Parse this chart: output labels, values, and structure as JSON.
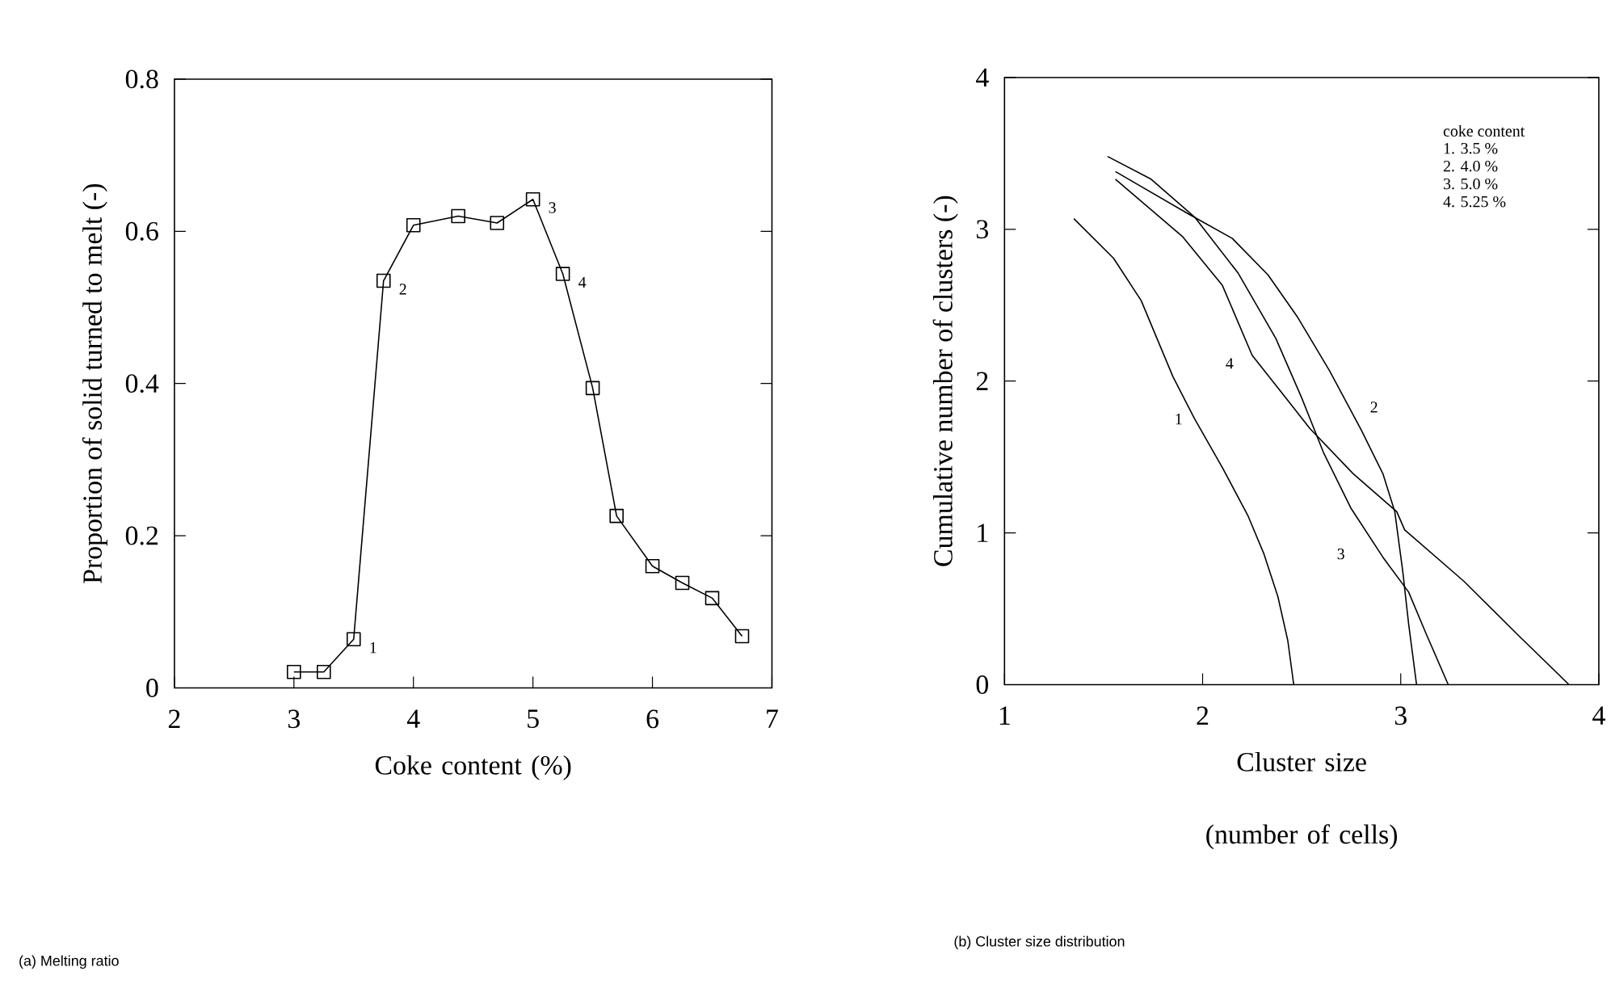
{
  "chart_data": [
    {
      "type": "line",
      "title": "(a) Melting ratio",
      "xlabel": "Coke content    (%)",
      "ylabel": "Proportion of solid turned to melt (-)",
      "x": [
        3.0,
        3.25,
        3.5,
        3.75,
        4.0,
        4.375,
        4.7,
        5.0,
        5.25,
        5.5,
        5.7,
        6.0,
        6.25,
        6.5,
        6.75
      ],
      "values": [
        0.021,
        0.021,
        0.064,
        0.535,
        0.608,
        0.62,
        0.611,
        0.642,
        0.544,
        0.394,
        0.226,
        0.16,
        0.138,
        0.118,
        0.068
      ],
      "color": "#000000",
      "marker": "square",
      "line_style": "solid",
      "xlim": [
        2,
        7
      ],
      "ylim": [
        0,
        0.8
      ],
      "xticks": [
        2,
        3,
        4,
        5,
        6,
        7
      ],
      "yticks": [
        0,
        0.2,
        0.4,
        0.6,
        0.8
      ],
      "annotations": [
        {
          "text": "1",
          "x": 3.5,
          "y": 0.064
        },
        {
          "text": "2",
          "x": 3.75,
          "y": 0.535
        },
        {
          "text": "3",
          "x": 5.0,
          "y": 0.642
        },
        {
          "text": "4",
          "x": 5.25,
          "y": 0.544
        }
      ]
    },
    {
      "type": "line",
      "title": "(b) Cluster size distribution",
      "xlabel": "Cluster size (number of cells)",
      "ylabel": "Cumulative number of clusters (-)",
      "series": [
        {
          "color": "#000000",
          "x": [
            1.35,
            1.55,
            1.69,
            1.77,
            1.85,
            1.96,
            2.1,
            2.23,
            2.31,
            2.38,
            2.43,
            2.46
          ],
          "values": [
            3.07,
            2.81,
            2.53,
            2.28,
            2.03,
            1.75,
            1.43,
            1.11,
            0.86,
            0.58,
            0.29,
            0
          ]
        },
        {
          "color": "#000000",
          "x": [
            1.56,
            1.93,
            2.15,
            2.33,
            2.48,
            2.64,
            2.8,
            2.91,
            2.97,
            3.01,
            3.04,
            3.08
          ],
          "values": [
            3.38,
            3.1,
            2.94,
            2.7,
            2.42,
            2.07,
            1.68,
            1.39,
            1.14,
            0.75,
            0.4,
            0
          ]
        },
        {
          "color": "#000000",
          "x": [
            1.52,
            1.74,
            1.96,
            2.18,
            2.37,
            2.5,
            2.61,
            2.75,
            2.91,
            3.04,
            3.13,
            3.24
          ],
          "values": [
            3.48,
            3.33,
            3.08,
            2.71,
            2.28,
            1.89,
            1.53,
            1.16,
            0.84,
            0.61,
            0.33,
            0
          ]
        },
        {
          "color": "#000000",
          "x": [
            1.56,
            1.9,
            2.1,
            2.25,
            2.42,
            2.54,
            2.76,
            2.98,
            3.02,
            3.32,
            3.59,
            3.85
          ],
          "values": [
            3.33,
            2.95,
            2.63,
            2.17,
            1.89,
            1.69,
            1.39,
            1.14,
            1.02,
            0.68,
            0.33,
            0
          ]
        }
      ],
      "marker": "none",
      "line_style": "solid",
      "xlim": [
        1,
        4
      ],
      "ylim": [
        0,
        4
      ],
      "xticks": [
        1,
        2,
        3,
        4
      ],
      "yticks": [
        0,
        1,
        2,
        3,
        4
      ],
      "annotations": [
        {
          "text": "1",
          "x": 1.96,
          "y": 1.75
        },
        {
          "text": "2",
          "x": 2.8,
          "y": 1.68
        },
        {
          "text": "3",
          "x": 2.91,
          "y": 0.84
        },
        {
          "text": "4",
          "x": 2.25,
          "y": 2.17
        },
        "coke content",
        "1.  3.5  %",
        "2.  4.0  %",
        "3.  5.0  %",
        "4.  5.25 %"
      ]
    }
  ]
}
